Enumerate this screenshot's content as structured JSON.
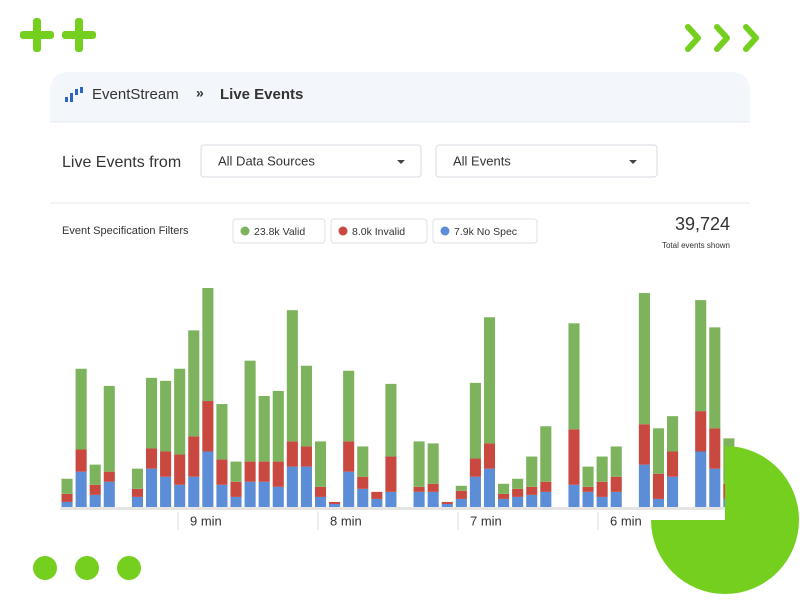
{
  "breadcrumb": {
    "app": "EventStream",
    "page": "Live Events"
  },
  "controls": {
    "label": "Live Events from",
    "source": "All Data Sources",
    "events": "All Events"
  },
  "summary": {
    "filters_label": "Event Specification Filters",
    "total": "39,724",
    "total_label": "Total events shown"
  },
  "chart_data": {
    "type": "stacked-bar",
    "series": [
      {
        "name": "23.8k Valid",
        "color": "#7db35c",
        "values": [
          15,
          80,
          20,
          85,
          0,
          20,
          70,
          70,
          85,
          105,
          112,
          55,
          20,
          100,
          65,
          70,
          130,
          80,
          45,
          0,
          70,
          30,
          0,
          72,
          0,
          45,
          40,
          0,
          5,
          75,
          125,
          10,
          10,
          30,
          55,
          0,
          105,
          20,
          25,
          30,
          0,
          130,
          45,
          35,
          0,
          110,
          100,
          45,
          20
        ]
      },
      {
        "name": "8.0k Invalid",
        "color": "#c9483f",
        "values": [
          8,
          22,
          10,
          10,
          0,
          8,
          20,
          25,
          30,
          40,
          50,
          25,
          15,
          20,
          20,
          25,
          25,
          20,
          10,
          2,
          30,
          12,
          7,
          35,
          0,
          5,
          8,
          2,
          8,
          18,
          25,
          5,
          8,
          8,
          10,
          0,
          55,
          5,
          15,
          15,
          0,
          40,
          25,
          25,
          0,
          40,
          40,
          15,
          10
        ]
      },
      {
        "name": "7.9k No Spec",
        "color": "#5b8ed6",
        "values": [
          5,
          35,
          12,
          25,
          0,
          10,
          38,
          30,
          22,
          30,
          55,
          22,
          10,
          25,
          25,
          20,
          40,
          40,
          10,
          3,
          35,
          18,
          8,
          15,
          0,
          15,
          15,
          3,
          8,
          30,
          38,
          8,
          10,
          12,
          15,
          0,
          22,
          15,
          10,
          15,
          0,
          42,
          8,
          30,
          0,
          55,
          38,
          8,
          15
        ]
      }
    ],
    "xlabels": [
      "9 min",
      "8 min",
      "7 min",
      "6 min"
    ]
  }
}
